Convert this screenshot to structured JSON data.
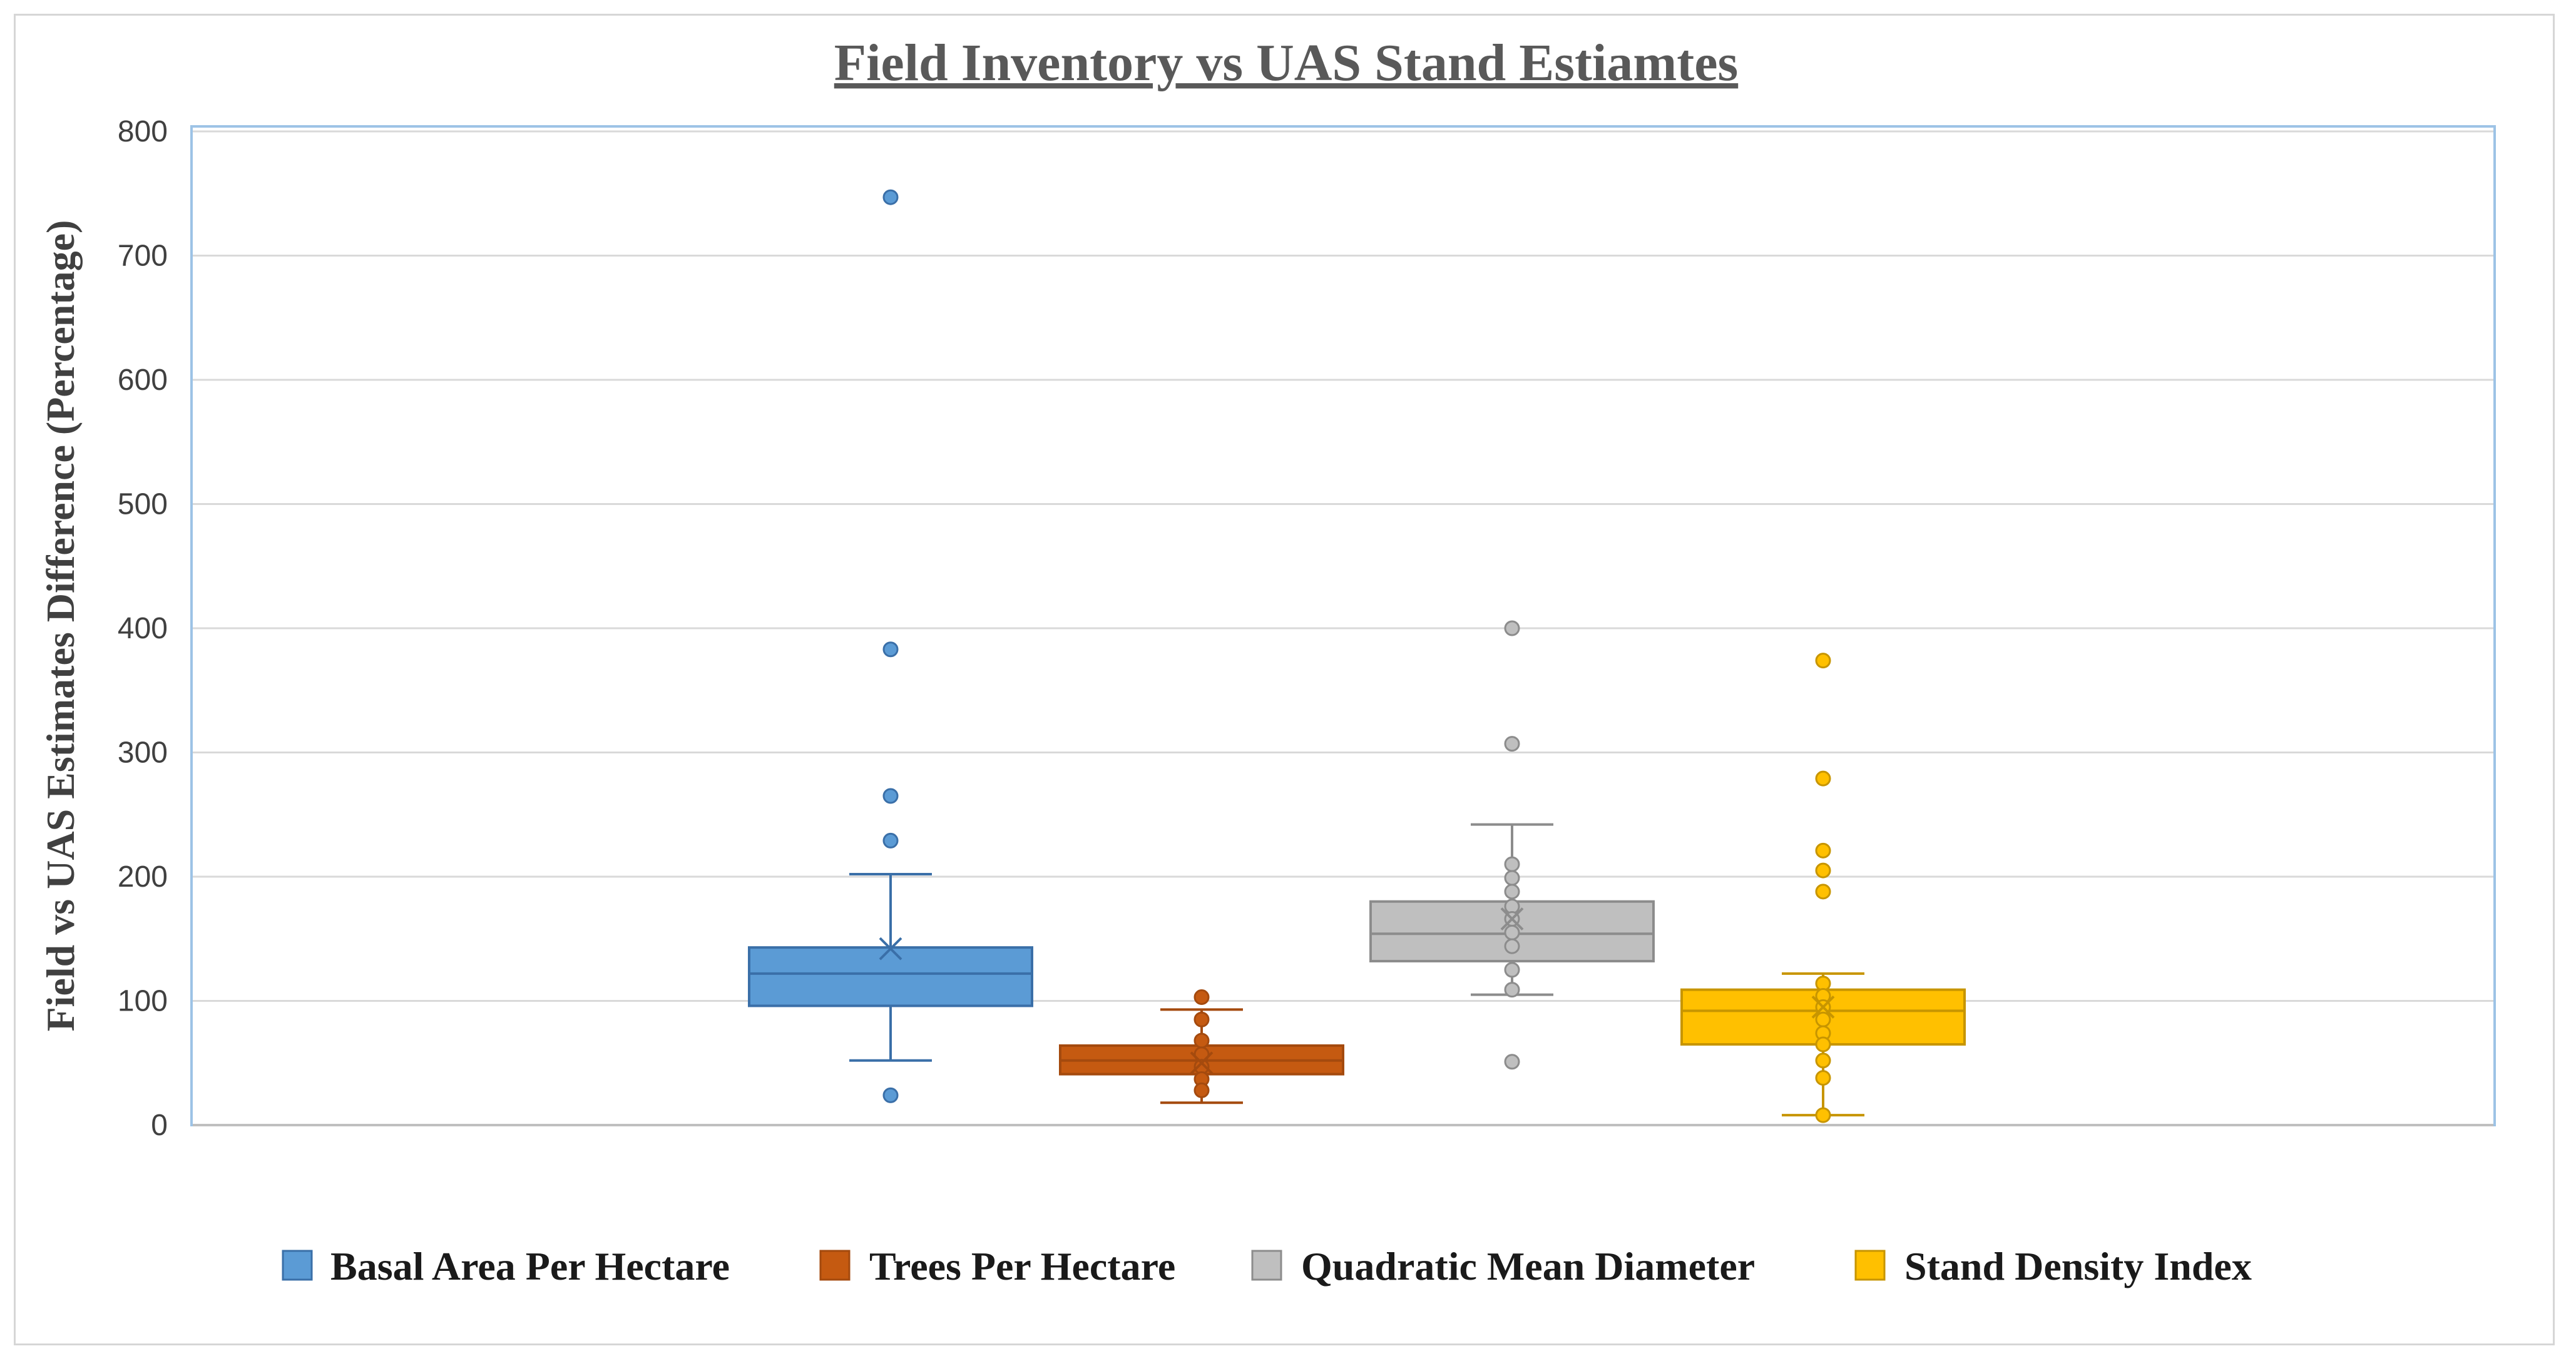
{
  "chart_data": {
    "type": "box",
    "title": "Field Inventory vs UAS Stand Estiamtes",
    "xlabel": "",
    "ylabel": "Field vs UAS Estimates Difference (Percentage)",
    "ylim": [
      0,
      800
    ],
    "yticks": [
      0,
      100,
      200,
      300,
      400,
      500,
      600,
      700,
      800
    ],
    "grid": true,
    "legend_position": "bottom",
    "series": [
      {
        "name": "Basal Area Per Hectare",
        "color": "#5b9bd5",
        "edge_color": "#3a6fa8",
        "whisker_low": 52,
        "q1": 96,
        "median": 122,
        "q3": 143,
        "whisker_high": 202,
        "mean": 142,
        "outliers": [
          747,
          383,
          265,
          229,
          24
        ]
      },
      {
        "name": "Trees Per Hectare",
        "color": "#c55a11",
        "edge_color": "#a44a0e",
        "whisker_low": 18,
        "q1": 41,
        "median": 52,
        "q3": 64,
        "whisker_high": 93,
        "mean": 50,
        "outliers": [
          103,
          85,
          68,
          57,
          47,
          37,
          28
        ]
      },
      {
        "name": "Quadratic Mean Diameter",
        "color": "#bfbfbf",
        "edge_color": "#8c8c8c",
        "whisker_low": 105,
        "q1": 132,
        "median": 154,
        "q3": 180,
        "whisker_high": 242,
        "mean": 166,
        "outliers": [
          400,
          307,
          210,
          199,
          188,
          176,
          166,
          155,
          144,
          125,
          109,
          51
        ]
      },
      {
        "name": "Stand Density Index",
        "color": "#ffc000",
        "edge_color": "#c79500",
        "whisker_low": 8,
        "q1": 65,
        "median": 92,
        "q3": 109,
        "whisker_high": 122,
        "mean": 95,
        "outliers": [
          374,
          279,
          221,
          205,
          188,
          114,
          104,
          95,
          85,
          74,
          65,
          52,
          38,
          8
        ]
      }
    ]
  }
}
